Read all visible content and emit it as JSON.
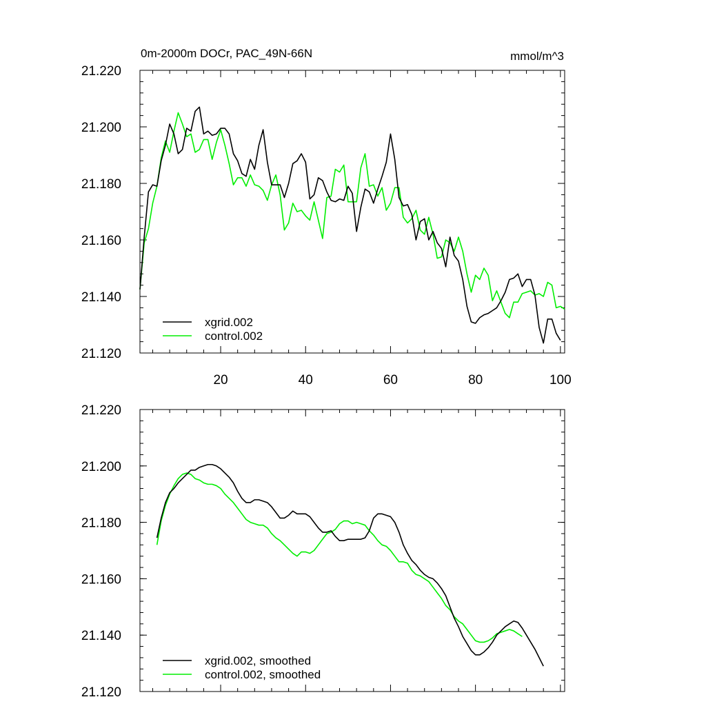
{
  "chart_data": [
    {
      "type": "line",
      "title": "0m-2000m DOCr, PAC_49N-66N",
      "units": "mmol/m^3",
      "xlabel": "",
      "ylabel": "",
      "xlim": [
        1,
        101
      ],
      "ylim": [
        21.12,
        21.22
      ],
      "xticks": [
        "20",
        "40",
        "60",
        "80",
        "100"
      ],
      "yticks": [
        "21.220",
        "21.200",
        "21.180",
        "21.160",
        "21.140",
        "21.120"
      ],
      "legend_position": "bottom-left",
      "series": [
        {
          "name": "xgrid.002",
          "color": "#000000",
          "x0": 1,
          "values": [
            21.1425,
            21.161,
            21.177,
            21.1795,
            21.179,
            21.188,
            21.1935,
            21.201,
            21.1975,
            21.1905,
            21.192,
            21.1995,
            21.1985,
            21.2055,
            21.207,
            21.1975,
            21.1985,
            21.197,
            21.1975,
            21.1995,
            21.1995,
            21.1975,
            21.1905,
            21.188,
            21.1835,
            21.1825,
            21.1885,
            21.185,
            21.1935,
            21.199,
            21.1875,
            21.1795,
            21.1795,
            21.1795,
            21.175,
            21.18,
            21.187,
            21.188,
            21.1905,
            21.1875,
            21.1745,
            21.176,
            21.182,
            21.181,
            21.177,
            21.174,
            21.1735,
            21.1745,
            21.174,
            21.179,
            21.1765,
            21.163,
            21.1715,
            21.178,
            21.177,
            21.173,
            21.178,
            21.1825,
            21.1875,
            21.1975,
            21.1885,
            21.175,
            21.172,
            21.1725,
            21.169,
            21.16,
            21.1665,
            21.1675,
            21.16,
            21.163,
            21.159,
            21.157,
            21.1505,
            21.161,
            21.1545,
            21.1525,
            21.146,
            21.1365,
            21.131,
            21.1305,
            21.1325,
            21.1335,
            21.134,
            21.135,
            21.136,
            21.1385,
            21.1415,
            21.146,
            21.1465,
            21.148,
            21.1435,
            21.146,
            21.146,
            21.1405,
            21.129,
            21.1235,
            21.132,
            21.132,
            21.127,
            21.1245
          ]
        },
        {
          "name": "control.002",
          "color": "#00ee00",
          "x0": 1,
          "values": [
            21.1425,
            21.159,
            21.164,
            21.173,
            21.179,
            21.189,
            21.195,
            21.191,
            21.1985,
            21.205,
            21.201,
            21.1965,
            21.1975,
            21.191,
            21.192,
            21.1955,
            21.1955,
            21.1885,
            21.1945,
            21.199,
            21.1935,
            21.187,
            21.1795,
            21.182,
            21.182,
            21.179,
            21.183,
            21.1795,
            21.179,
            21.1775,
            21.174,
            21.1795,
            21.183,
            21.176,
            21.1635,
            21.166,
            21.173,
            21.17,
            21.1705,
            21.1685,
            21.167,
            21.1735,
            21.167,
            21.1605,
            21.175,
            21.1755,
            21.185,
            21.184,
            21.1865,
            21.1735,
            21.1735,
            21.1735,
            21.1855,
            21.1905,
            21.179,
            21.1795,
            21.1755,
            21.1785,
            21.1705,
            21.173,
            21.1785,
            21.1785,
            21.168,
            21.166,
            21.1675,
            21.1705,
            21.1635,
            21.162,
            21.168,
            21.162,
            21.1535,
            21.154,
            21.16,
            21.159,
            21.156,
            21.161,
            21.156,
            21.148,
            21.1415,
            21.1475,
            21.146,
            21.15,
            21.1475,
            21.1385,
            21.142,
            21.138,
            21.134,
            21.1325,
            21.138,
            21.138,
            21.141,
            21.1415,
            21.142,
            21.1405,
            21.141,
            21.14,
            21.145,
            21.144,
            21.136,
            21.1365,
            21.1355
          ]
        }
      ]
    },
    {
      "type": "line",
      "title": "",
      "xlabel": "",
      "ylabel": "",
      "xlim": [
        1,
        101
      ],
      "ylim": [
        21.12,
        21.22
      ],
      "xticks": [],
      "yticks": [
        "21.220",
        "21.200",
        "21.180",
        "21.160",
        "21.140",
        "21.120"
      ],
      "legend_position": "bottom-left",
      "series": [
        {
          "name": "xgrid.002, smoothed",
          "color": "#000000",
          "x0": 5,
          "values": [
            21.1745,
            21.1815,
            21.187,
            21.1905,
            21.192,
            21.194,
            21.1955,
            21.197,
            21.1985,
            21.1985,
            21.1995,
            21.2,
            21.2005,
            21.2005,
            21.2,
            21.199,
            21.1975,
            21.196,
            21.194,
            21.191,
            21.1885,
            21.187,
            21.187,
            21.188,
            21.188,
            21.1875,
            21.187,
            21.1855,
            21.1835,
            21.1815,
            21.1815,
            21.1825,
            21.184,
            21.183,
            21.183,
            21.183,
            21.182,
            21.18,
            21.178,
            21.1765,
            21.1765,
            21.177,
            21.175,
            21.1735,
            21.1735,
            21.174,
            21.174,
            21.174,
            21.174,
            21.1745,
            21.177,
            21.1815,
            21.183,
            21.183,
            21.1825,
            21.182,
            21.18,
            21.1765,
            21.172,
            21.169,
            21.1665,
            21.165,
            21.163,
            21.1615,
            21.1605,
            21.16,
            21.1585,
            21.1565,
            21.154,
            21.15,
            21.146,
            21.143,
            21.1395,
            21.137,
            21.1345,
            21.133,
            21.133,
            21.134,
            21.1355,
            21.1375,
            21.14,
            21.1415,
            21.143,
            21.144,
            21.145,
            21.1445,
            21.1425,
            21.14,
            21.1375,
            21.135,
            21.132,
            21.129
          ]
        },
        {
          "name": "control.002, smoothed",
          "color": "#00ee00",
          "x0": 5,
          "values": [
            21.172,
            21.1805,
            21.186,
            21.19,
            21.193,
            21.1955,
            21.197,
            21.1975,
            21.197,
            21.1955,
            21.195,
            21.194,
            21.1935,
            21.1935,
            21.193,
            21.192,
            21.19,
            21.1885,
            21.187,
            21.185,
            21.183,
            21.181,
            21.18,
            21.1795,
            21.179,
            21.179,
            21.178,
            21.176,
            21.1745,
            21.1735,
            21.172,
            21.1705,
            21.169,
            21.168,
            21.1695,
            21.1695,
            21.169,
            21.17,
            21.172,
            21.174,
            21.176,
            21.1765,
            21.1775,
            21.1795,
            21.1805,
            21.1805,
            21.1795,
            21.18,
            21.1795,
            21.179,
            21.177,
            21.1755,
            21.1735,
            21.172,
            21.1715,
            21.17,
            21.168,
            21.166,
            21.166,
            21.1655,
            21.163,
            21.1615,
            21.161,
            21.16,
            21.159,
            21.157,
            21.155,
            21.153,
            21.1505,
            21.149,
            21.1465,
            21.145,
            21.144,
            21.142,
            21.14,
            21.138,
            21.1375,
            21.1375,
            21.138,
            21.139,
            21.1405,
            21.141,
            21.1415,
            21.142,
            21.1415,
            21.1405,
            21.1395
          ]
        }
      ]
    }
  ]
}
